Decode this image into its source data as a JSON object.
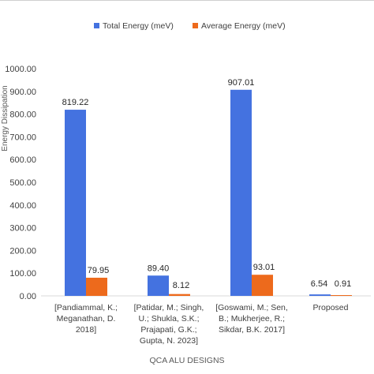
{
  "chart_data": {
    "type": "bar",
    "title": "",
    "xlabel": "QCA ALU DESIGNS",
    "ylabel": "Energy Dissipation",
    "ylim": [
      0,
      1000
    ],
    "yticks": [
      "0.00",
      "100.00",
      "200.00",
      "300.00",
      "400.00",
      "500.00",
      "600.00",
      "700.00",
      "800.00",
      "900.00",
      "1000.00"
    ],
    "grid": false,
    "legend_position": "top",
    "categories": [
      [
        "[Pandiammal, K.;",
        "Meganathan, D.",
        "2018]"
      ],
      [
        "[Patidar, M.; Singh,",
        "U.; Shukla, S.K.;",
        "Prajapati, G.K.;",
        "Gupta, N. 2023]"
      ],
      [
        "[Goswami, M.; Sen,",
        "B.; Mukherjee, R.;",
        "Sikdar, B.K. 2017]"
      ],
      [
        "Proposed"
      ]
    ],
    "series": [
      {
        "name": "Total Energy (meV)",
        "color": "#4472e0",
        "values": [
          819.22,
          89.4,
          907.01,
          6.54
        ],
        "labels": [
          "819.22",
          "89.40",
          "907.01",
          "6.54"
        ]
      },
      {
        "name": "Average Energy (meV)",
        "color": "#ed6a1c",
        "values": [
          79.95,
          8.12,
          93.01,
          0.91
        ],
        "labels": [
          "79.95",
          "8.12",
          "93.01",
          "0.91"
        ]
      }
    ]
  }
}
